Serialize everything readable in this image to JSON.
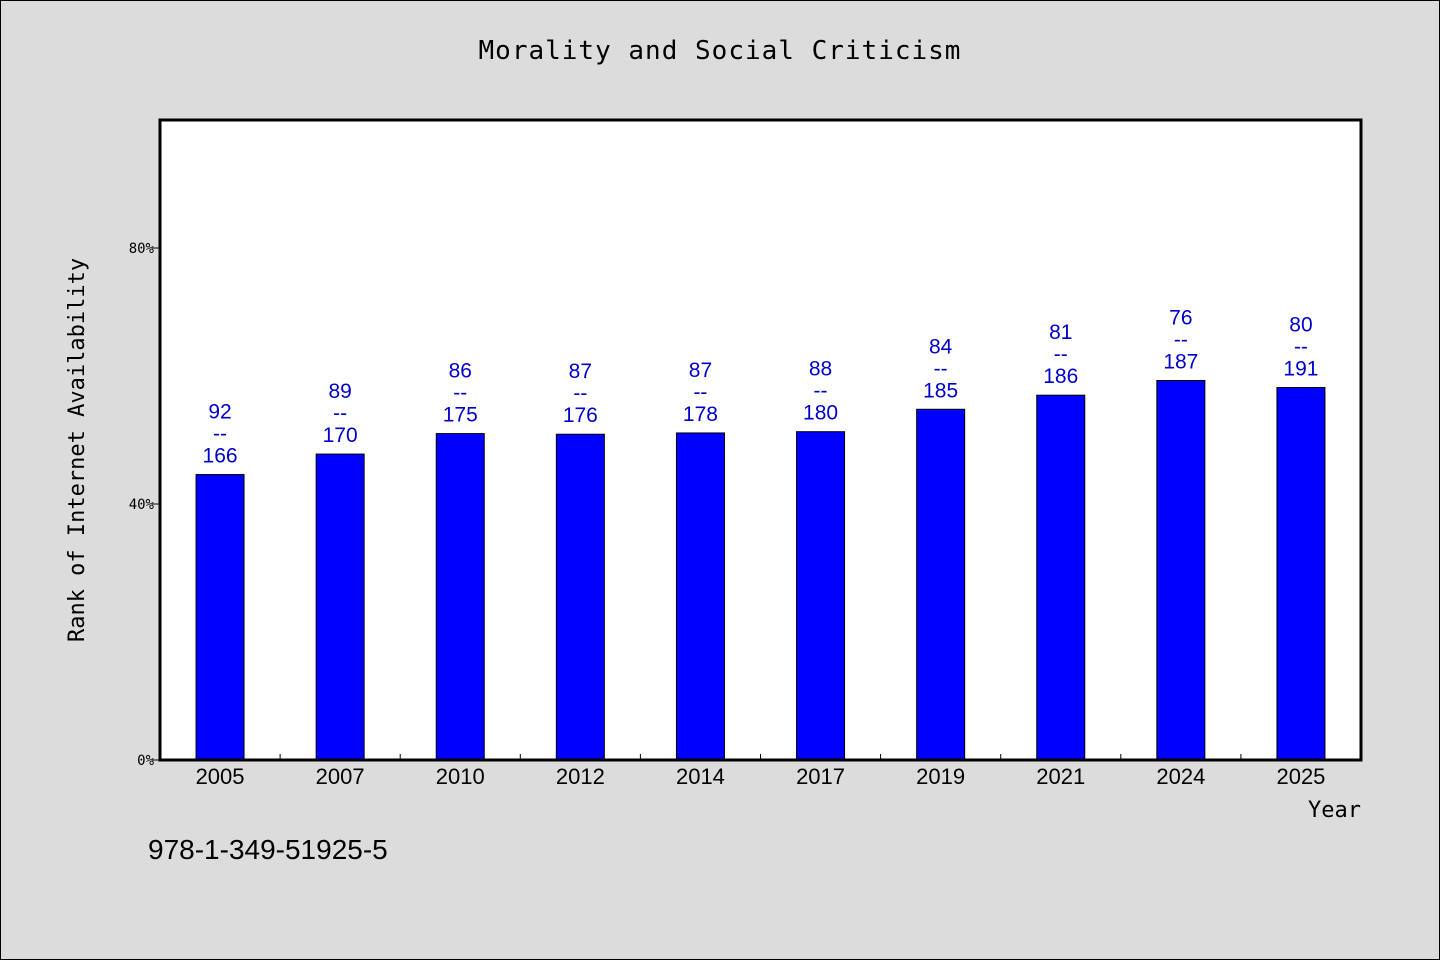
{
  "chart_data": {
    "type": "bar",
    "title": "Morality and Social Criticism",
    "xlabel": "Year",
    "ylabel": "Rank of Internet Availability",
    "categories": [
      "2005",
      "2007",
      "2010",
      "2012",
      "2014",
      "2017",
      "2019",
      "2021",
      "2024",
      "2025"
    ],
    "values": [
      44.6,
      47.8,
      51.0,
      50.9,
      51.1,
      51.3,
      54.8,
      57.0,
      59.3,
      58.2
    ],
    "bar_labels": [
      [
        "92",
        "--",
        "166"
      ],
      [
        "89",
        "--",
        "170"
      ],
      [
        "86",
        "--",
        "175"
      ],
      [
        "87",
        "--",
        "176"
      ],
      [
        "87",
        "--",
        "178"
      ],
      [
        "88",
        "--",
        "180"
      ],
      [
        "84",
        "--",
        "185"
      ],
      [
        "81",
        "--",
        "186"
      ],
      [
        "76",
        "--",
        "187"
      ],
      [
        "80",
        "--",
        "191"
      ]
    ],
    "ylim": [
      0,
      100
    ],
    "yticks": [
      0,
      40,
      80
    ],
    "ytick_labels": [
      "0%",
      "40%",
      "80%"
    ],
    "grid": false,
    "colors": {
      "bar": "#0000ff",
      "label": "#0000cc",
      "background": "#dcdcdc",
      "plot_background": "#ffffff"
    }
  },
  "footer": {
    "identifier": "978-1-349-51925-5"
  }
}
